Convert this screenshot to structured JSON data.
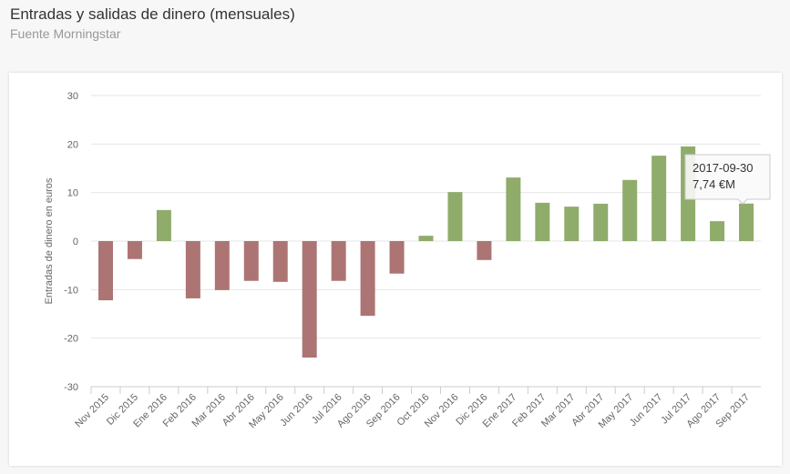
{
  "header": {
    "title": "Entradas y salidas de dinero (mensuales)",
    "subtitle": "Fuente Morningstar"
  },
  "tooltip": {
    "date": "2017-09-30",
    "value": "7,74 €M"
  },
  "chart_data": {
    "type": "bar",
    "title": "Entradas y salidas de dinero (mensuales)",
    "ylabel": "Entradas de dinero en euros",
    "ylim": [
      -30,
      30
    ],
    "yticks": [
      -30,
      -20,
      -10,
      0,
      10,
      20,
      30
    ],
    "categories": [
      "Nov 2015",
      "Dic 2015",
      "Ene 2016",
      "Feb 2016",
      "Mar 2016",
      "Abr 2016",
      "May 2016",
      "Jun 2016",
      "Jul 2016",
      "Ago 2016",
      "Sep 2016",
      "Oct 2016",
      "Nov 2016",
      "Dic 2016",
      "Ene 2017",
      "Feb 2017",
      "Mar 2017",
      "Abr 2017",
      "May 2017",
      "Jun 2017",
      "Jul 2017",
      "Ago 2017",
      "Sep 2017"
    ],
    "values": [
      -12.2,
      -3.7,
      6.4,
      -11.8,
      -10.1,
      -8.2,
      -8.4,
      -24,
      -8.2,
      -15.4,
      -6.7,
      1.1,
      10.1,
      -3.9,
      13.1,
      7.9,
      7.1,
      7.7,
      12.6,
      17.6,
      19.5,
      4.1,
      7.74
    ],
    "colors": {
      "positive": "#8fac6b",
      "negative": "#ad7474"
    },
    "grid": true,
    "legend": "none"
  }
}
